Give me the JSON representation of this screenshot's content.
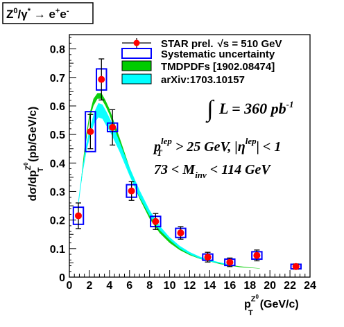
{
  "chart_data": {
    "type": "scatter",
    "title": "Z⁰/γ* → e⁺e⁻",
    "title_parts": {
      "a": "Z",
      "a_sup": "0",
      "b": "/γ",
      "b_sup": "*",
      "arrow": " → ",
      "c": "e",
      "c_sup": "+",
      "d": "e",
      "d_sup": "-"
    },
    "xlabel": "p_T^{Z^0} (GeV/c)",
    "xlabel_parts": {
      "p": "p",
      "sub": "T",
      "sup": "Z",
      "supsup": "0",
      "unit": "(GeV/c)"
    },
    "ylabel": "dσ/dp_T^{Z^0} (pb/GeV/c)",
    "ylabel_parts": {
      "main": "dσ/dp",
      "sub": "T",
      "sup": "Z",
      "supsup": "0",
      "unit": "(pb/GeV/c)"
    },
    "xlim": [
      0,
      24
    ],
    "ylim": [
      0,
      0.85
    ],
    "xticks": [
      "0",
      "2",
      "4",
      "6",
      "8",
      "10",
      "12",
      "14",
      "16",
      "18",
      "20",
      "22",
      "24"
    ],
    "yticks": [
      "0",
      "0.1",
      "0.2",
      "0.3",
      "0.4",
      "0.5",
      "0.6",
      "0.7",
      "0.8"
    ],
    "grid": false,
    "legend_position": "top-right",
    "series": [
      {
        "name": "STAR prel.",
        "name_extra": "√s = 510 GeV",
        "color": "#ff0000",
        "x": [
          0.9,
          2.1,
          3.2,
          4.3,
          6.2,
          8.6,
          11.1,
          13.8,
          16.0,
          18.7,
          22.6
        ],
        "y": [
          0.215,
          0.51,
          0.693,
          0.525,
          0.302,
          0.195,
          0.155,
          0.07,
          0.052,
          0.076,
          0.037
        ],
        "stat_err": [
          0.045,
          0.06,
          0.072,
          0.062,
          0.033,
          0.028,
          0.022,
          0.017,
          0.015,
          0.019,
          0.009
        ],
        "sys_err": [
          0.03,
          0.07,
          0.037,
          0.015,
          0.022,
          0.018,
          0.016,
          0.011,
          0.011,
          0.013,
          0.008
        ],
        "sys_halfwidth": [
          0.5,
          0.5,
          0.5,
          0.5,
          0.5,
          0.5,
          0.5,
          0.5,
          0.5,
          0.5,
          0.5
        ]
      },
      {
        "name": "Systematic uncertainty",
        "color": "#0000ff"
      },
      {
        "name": "TMDPDFs [1902.08474]",
        "color": "#00cc00",
        "x": [
          1.2,
          1.6,
          2.0,
          2.4,
          2.8,
          3.2,
          3.6,
          4.0,
          5.0,
          6.0,
          7.0,
          8.0,
          9.0,
          10.0,
          11.0,
          12.0,
          13.0,
          14.0,
          15.0,
          16.0,
          17.0,
          18.0,
          19.0
        ],
        "lower": [
          0.33,
          0.46,
          0.55,
          0.6,
          0.625,
          0.625,
          0.6,
          0.57,
          0.47,
          0.36,
          0.275,
          0.205,
          0.155,
          0.12,
          0.095,
          0.077,
          0.064,
          0.055,
          0.046,
          0.04,
          0.035,
          0.032,
          0.03
        ],
        "upper": [
          0.35,
          0.48,
          0.57,
          0.625,
          0.645,
          0.645,
          0.62,
          0.59,
          0.49,
          0.385,
          0.295,
          0.225,
          0.17,
          0.132,
          0.105,
          0.085,
          0.07,
          0.06,
          0.05,
          0.043,
          0.038,
          0.034,
          0.031
        ]
      },
      {
        "name": "arXiv:1703.10157",
        "color": "#00ffff",
        "x": [
          0.9,
          1.3,
          1.7,
          2.1,
          2.5,
          2.9,
          3.3,
          3.7,
          4.2,
          5.0,
          6.0,
          7.0,
          8.0,
          9.0,
          10.0,
          11.0,
          12.0,
          13.0,
          14.0,
          15.0,
          16.0
        ],
        "lower": [
          0.25,
          0.36,
          0.44,
          0.5,
          0.54,
          0.56,
          0.555,
          0.53,
          0.5,
          0.44,
          0.355,
          0.28,
          0.215,
          0.165,
          0.13,
          0.1,
          0.08,
          0.065,
          0.055,
          0.048,
          0.04
        ],
        "upper": [
          0.27,
          0.38,
          0.47,
          0.53,
          0.58,
          0.61,
          0.605,
          0.58,
          0.545,
          0.475,
          0.385,
          0.305,
          0.235,
          0.18,
          0.14,
          0.11,
          0.088,
          0.072,
          0.06,
          0.052,
          0.044
        ]
      }
    ],
    "annotations": {
      "lumi": {
        "int": "∫",
        "L": "L = 360 pb",
        "sup": "-1"
      },
      "cut1": {
        "p": "p",
        "sub": "T",
        "sup": "lep",
        "rest": " > 25 GeV, |η",
        "sup2": "lep",
        "rest2": "| < 1"
      },
      "cut2": {
        "pre": "73 < M",
        "sub": "inv",
        "post": " < 114 GeV"
      }
    }
  }
}
